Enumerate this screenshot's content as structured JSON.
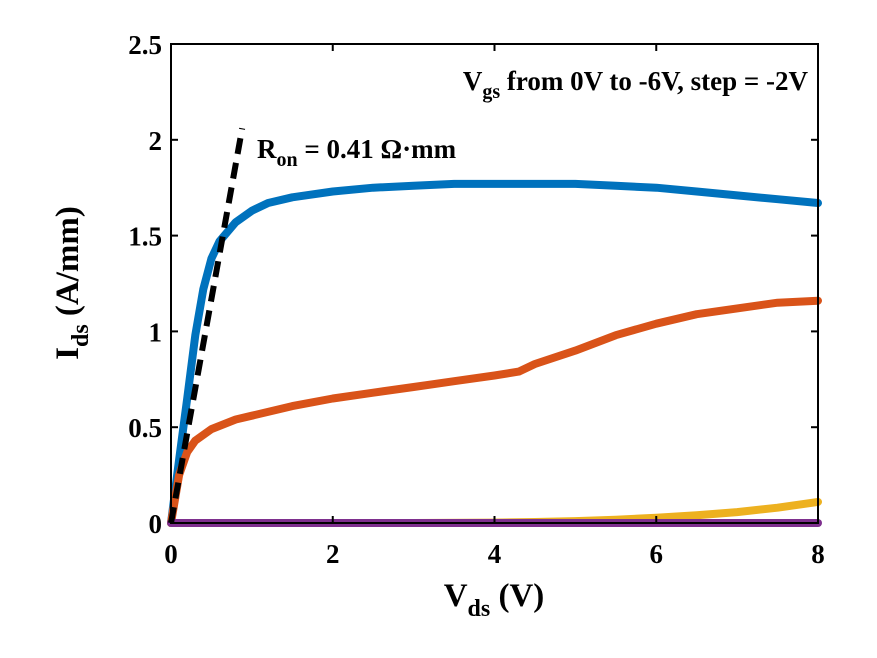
{
  "chart_data": {
    "type": "line",
    "xlabel": {
      "main": "V",
      "sub": "ds",
      "unit": " (V)"
    },
    "ylabel": {
      "main": "I",
      "sub": "ds",
      "unit": " (A/mm)"
    },
    "xlim": [
      0,
      8
    ],
    "ylim": [
      0,
      2.5
    ],
    "xticks": [
      "0",
      "2",
      "4",
      "6",
      "8"
    ],
    "yticks": [
      "0",
      "0.5",
      "1",
      "1.5",
      "2",
      "2.5"
    ],
    "xtick_values": [
      0,
      2,
      4,
      6,
      8
    ],
    "ytick_values": [
      0,
      0.5,
      1,
      1.5,
      2,
      2.5
    ],
    "grid": false,
    "annotation_vgs": {
      "main": "V",
      "sub": "gs",
      "rest": " from 0V to -6V, step = -2V"
    },
    "annotation_ron": {
      "main": "R",
      "sub": "on",
      "rest": " = 0.41 Ω·mm"
    },
    "series": [
      {
        "color": "#0072BD",
        "style": "solid",
        "x": [
          0,
          0.1,
          0.2,
          0.3,
          0.4,
          0.5,
          0.6,
          0.8,
          1.0,
          1.2,
          1.5,
          2.0,
          2.5,
          3.0,
          3.5,
          4.0,
          4.5,
          5.0,
          5.5,
          6.0,
          6.5,
          7.0,
          7.5,
          8.0
        ],
        "y": [
          0,
          0.33,
          0.65,
          0.98,
          1.22,
          1.38,
          1.47,
          1.57,
          1.63,
          1.67,
          1.7,
          1.73,
          1.75,
          1.76,
          1.77,
          1.77,
          1.77,
          1.77,
          1.76,
          1.75,
          1.73,
          1.71,
          1.69,
          1.67
        ]
      },
      {
        "color": "#D95319",
        "style": "solid",
        "x": [
          0,
          0.1,
          0.2,
          0.3,
          0.5,
          0.8,
          1.0,
          1.5,
          2.0,
          2.5,
          3.0,
          3.5,
          4.0,
          4.3,
          4.5,
          5.0,
          5.5,
          6.0,
          6.5,
          7.0,
          7.5,
          8.0
        ],
        "y": [
          0,
          0.25,
          0.37,
          0.43,
          0.49,
          0.54,
          0.56,
          0.61,
          0.65,
          0.68,
          0.71,
          0.74,
          0.77,
          0.79,
          0.83,
          0.9,
          0.98,
          1.04,
          1.09,
          1.12,
          1.15,
          1.16
        ]
      },
      {
        "color": "#EDB120",
        "style": "solid",
        "x": [
          0,
          3.0,
          4.0,
          4.5,
          5.0,
          5.5,
          6.0,
          6.5,
          7.0,
          7.5,
          8.0
        ],
        "y": [
          0,
          0.0,
          0.002,
          0.005,
          0.01,
          0.017,
          0.027,
          0.04,
          0.057,
          0.08,
          0.11
        ]
      },
      {
        "color": "#7E2F8E",
        "style": "solid",
        "x": [
          0,
          8.0
        ],
        "y": [
          0,
          0
        ]
      },
      {
        "color": "#000000",
        "style": "dashed",
        "x": [
          0,
          0.88
        ],
        "y": [
          0,
          2.06
        ]
      }
    ]
  }
}
